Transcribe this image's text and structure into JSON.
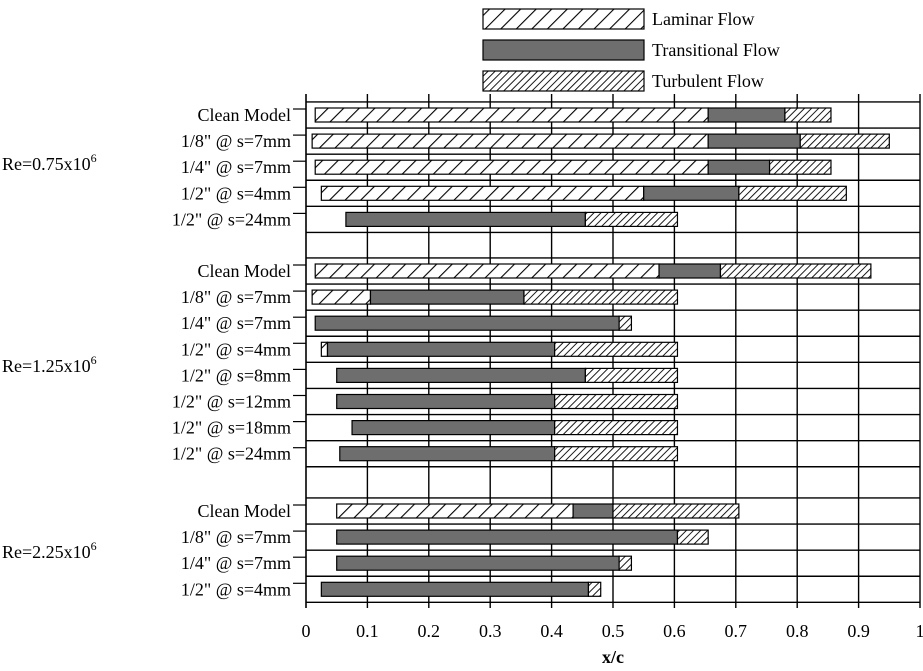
{
  "chart_data": {
    "type": "bar",
    "orientation": "horizontal",
    "stacked": true,
    "xlabel": "x/c",
    "ylabel": "",
    "title": "",
    "xlim": [
      0,
      1
    ],
    "x_ticks": [
      "0",
      "0.1",
      "0.2",
      "0.3",
      "0.4",
      "0.5",
      "0.6",
      "0.7",
      "0.8",
      "0.9",
      "1"
    ],
    "grid": true,
    "legend_position": "top",
    "legend": [
      {
        "key": "laminar",
        "label": "Laminar Flow"
      },
      {
        "key": "transitional",
        "label": "Transitional Flow"
      },
      {
        "key": "turbulent",
        "label": "Turbulent Flow"
      }
    ],
    "series_colors": {
      "laminar": "#ffffff",
      "transitional": "#6e6e6e",
      "turbulent": "#ffffff",
      "edge": "#000000"
    },
    "groups": [
      {
        "label": "Re=0.75x10",
        "exponent": "6",
        "rows": [
          {
            "label": "Clean Model",
            "segments": [
              {
                "type": "laminar",
                "start": 0.015,
                "end": 0.655
              },
              {
                "type": "transitional",
                "start": 0.655,
                "end": 0.78
              },
              {
                "type": "turbulent",
                "start": 0.78,
                "end": 0.855
              }
            ]
          },
          {
            "label": "1/8\" @ s=7mm",
            "segments": [
              {
                "type": "laminar",
                "start": 0.01,
                "end": 0.655
              },
              {
                "type": "transitional",
                "start": 0.655,
                "end": 0.805
              },
              {
                "type": "turbulent",
                "start": 0.805,
                "end": 0.95
              }
            ]
          },
          {
            "label": "1/4\" @ s=7mm",
            "segments": [
              {
                "type": "laminar",
                "start": 0.015,
                "end": 0.655
              },
              {
                "type": "transitional",
                "start": 0.655,
                "end": 0.755
              },
              {
                "type": "turbulent",
                "start": 0.755,
                "end": 0.855
              }
            ]
          },
          {
            "label": "1/2\" @ s=4mm",
            "segments": [
              {
                "type": "laminar",
                "start": 0.025,
                "end": 0.55
              },
              {
                "type": "transitional",
                "start": 0.55,
                "end": 0.705
              },
              {
                "type": "turbulent",
                "start": 0.705,
                "end": 0.88
              }
            ]
          },
          {
            "label": "1/2\" @ s=24mm",
            "segments": [
              {
                "type": "transitional",
                "start": 0.065,
                "end": 0.455
              },
              {
                "type": "turbulent",
                "start": 0.455,
                "end": 0.605
              }
            ]
          }
        ]
      },
      {
        "label": "Re=1.25x10",
        "exponent": "6",
        "rows": [
          {
            "label": "Clean Model",
            "segments": [
              {
                "type": "laminar",
                "start": 0.015,
                "end": 0.575
              },
              {
                "type": "transitional",
                "start": 0.575,
                "end": 0.675
              },
              {
                "type": "turbulent",
                "start": 0.675,
                "end": 0.92
              }
            ]
          },
          {
            "label": "1/8\" @ s=7mm",
            "segments": [
              {
                "type": "laminar",
                "start": 0.01,
                "end": 0.105
              },
              {
                "type": "transitional",
                "start": 0.105,
                "end": 0.355
              },
              {
                "type": "turbulent",
                "start": 0.355,
                "end": 0.605
              }
            ]
          },
          {
            "label": "1/4\" @ s=7mm",
            "segments": [
              {
                "type": "transitional",
                "start": 0.015,
                "end": 0.51
              },
              {
                "type": "turbulent",
                "start": 0.51,
                "end": 0.53
              }
            ]
          },
          {
            "label": "1/2\" @ s=4mm",
            "segments": [
              {
                "type": "laminar",
                "start": 0.025,
                "end": 0.035
              },
              {
                "type": "transitional",
                "start": 0.035,
                "end": 0.405
              },
              {
                "type": "turbulent",
                "start": 0.405,
                "end": 0.605
              }
            ]
          },
          {
            "label": "1/2\" @ s=8mm",
            "segments": [
              {
                "type": "transitional",
                "start": 0.05,
                "end": 0.455
              },
              {
                "type": "turbulent",
                "start": 0.455,
                "end": 0.605
              }
            ]
          },
          {
            "label": "1/2\" @ s=12mm",
            "segments": [
              {
                "type": "transitional",
                "start": 0.05,
                "end": 0.405
              },
              {
                "type": "turbulent",
                "start": 0.405,
                "end": 0.605
              }
            ]
          },
          {
            "label": "1/2\" @ s=18mm",
            "segments": [
              {
                "type": "transitional",
                "start": 0.075,
                "end": 0.405
              },
              {
                "type": "turbulent",
                "start": 0.405,
                "end": 0.605
              }
            ]
          },
          {
            "label": "1/2\" @ s=24mm",
            "segments": [
              {
                "type": "transitional",
                "start": 0.055,
                "end": 0.405
              },
              {
                "type": "turbulent",
                "start": 0.405,
                "end": 0.605
              }
            ]
          }
        ]
      },
      {
        "label": "Re=2.25x10",
        "exponent": "6",
        "rows": [
          {
            "label": "Clean Model",
            "segments": [
              {
                "type": "laminar",
                "start": 0.05,
                "end": 0.435
              },
              {
                "type": "transitional",
                "start": 0.435,
                "end": 0.5
              },
              {
                "type": "turbulent",
                "start": 0.5,
                "end": 0.705
              }
            ]
          },
          {
            "label": "1/8\" @ s=7mm",
            "segments": [
              {
                "type": "transitional",
                "start": 0.05,
                "end": 0.605
              },
              {
                "type": "turbulent",
                "start": 0.605,
                "end": 0.655
              }
            ]
          },
          {
            "label": "1/4\" @ s=7mm",
            "segments": [
              {
                "type": "transitional",
                "start": 0.05,
                "end": 0.51
              },
              {
                "type": "turbulent",
                "start": 0.51,
                "end": 0.53
              }
            ]
          },
          {
            "label": "1/2\" @ s=4mm",
            "segments": [
              {
                "type": "transitional",
                "start": 0.025,
                "end": 0.46
              },
              {
                "type": "turbulent",
                "start": 0.46,
                "end": 0.48
              }
            ]
          }
        ]
      }
    ]
  }
}
